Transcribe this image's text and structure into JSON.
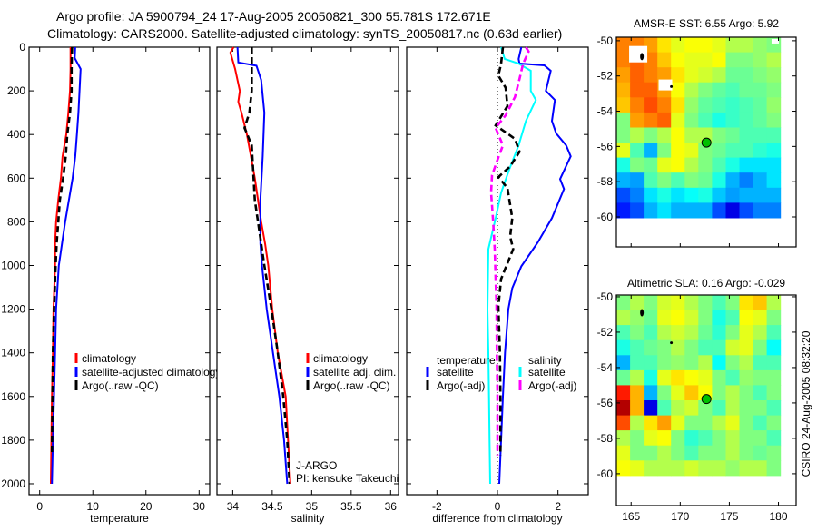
{
  "title_line1": "Argo profile: JA 5900794_24 17-Aug-2005 20050821_300 55.781S 172.671E",
  "title_line2": "Climatology: CARS2000. Satellite-adjusted climatology: synTS_20050817.nc (0.63d earlier)",
  "credit": "CSIRO 24-Aug-2005 08:32:20",
  "program": "J-ARGO",
  "pi": "PI: kensuke Takeuchi",
  "colors": {
    "red": "#ff0000",
    "blue": "#0000ff",
    "black": "#000000",
    "cyan": "#00ffff",
    "magenta": "#ff00ff",
    "marker": "#00c000"
  },
  "chart_data": [
    {
      "type": "line",
      "xlabel": "temperature",
      "ylabel": "",
      "xlim": [
        -2,
        32
      ],
      "ylim": [
        0,
        2050
      ],
      "y_reversed": true,
      "xticks": [
        0,
        10,
        20,
        30
      ],
      "yticks": [
        0,
        200,
        400,
        600,
        800,
        1000,
        1200,
        1400,
        1600,
        1800,
        2000
      ],
      "legend": [
        "climatology",
        "satellite-adjusted climatology",
        "Argo(..raw -QC)"
      ],
      "legend_placement": "lower-center",
      "series": [
        {
          "name": "climatology",
          "color": "red",
          "style": "solid",
          "depth": [
            0,
            100,
            200,
            300,
            400,
            500,
            600,
            700,
            800,
            900,
            1000,
            1200,
            1400,
            1600,
            1800,
            2000
          ],
          "values": [
            5.8,
            5.8,
            5.7,
            5.4,
            5.0,
            4.3,
            4.0,
            3.5,
            3.1,
            2.9,
            2.9,
            2.6,
            2.5,
            2.3,
            2.2,
            2.1
          ]
        },
        {
          "name": "satellite-adjusted climatology",
          "color": "blue",
          "style": "solid",
          "depth": [
            0,
            50,
            100,
            200,
            300,
            400,
            500,
            600,
            700,
            800,
            900,
            1000,
            1200,
            1400,
            1600,
            1800,
            2000
          ],
          "values": [
            6.7,
            6.6,
            7.7,
            7.5,
            7.3,
            7.0,
            6.7,
            6.2,
            5.5,
            4.8,
            4.2,
            3.6,
            3.1,
            2.9,
            2.7,
            2.5,
            2.3
          ]
        },
        {
          "name": "Argo(..raw -QC)",
          "color": "black",
          "style": "dashed",
          "depth": [
            0,
            100,
            200,
            300,
            400,
            500,
            600,
            700,
            800,
            900,
            1000,
            1200,
            1400,
            1600,
            1870
          ],
          "values": [
            6.1,
            6.0,
            6.0,
            5.7,
            5.2,
            4.9,
            4.4,
            3.8,
            3.5,
            3.2,
            3.0,
            2.7,
            2.5,
            2.4,
            2.3
          ]
        }
      ]
    },
    {
      "type": "line",
      "xlabel": "salinity",
      "xlim": [
        33.8,
        36.1
      ],
      "ylim": [
        0,
        2050
      ],
      "y_reversed": true,
      "xticks": [
        34,
        34.5,
        35,
        35.5,
        36
      ],
      "legend": [
        "climatology",
        "satellite adj. clim.",
        "Argo(..raw -QC)"
      ],
      "legend_placement": "lower-center",
      "series": [
        {
          "name": "climatology",
          "color": "red",
          "style": "solid",
          "depth": [
            0,
            25,
            100,
            200,
            250,
            300,
            400,
            500,
            600,
            700,
            800,
            900,
            1000,
            1200,
            1400,
            1600,
            1800,
            2000
          ],
          "values": [
            34.01,
            33.97,
            34.03,
            34.09,
            34.07,
            34.11,
            34.18,
            34.23,
            34.28,
            34.32,
            34.36,
            34.41,
            34.45,
            34.5,
            34.57,
            34.67,
            34.7,
            34.73
          ]
        },
        {
          "name": "satellite adj. clim.",
          "color": "blue",
          "style": "solid",
          "depth": [
            0,
            70,
            85,
            150,
            300,
            500,
            700,
            900,
            1000,
            1200,
            1400,
            1600,
            1800,
            2000
          ],
          "values": [
            34.06,
            34.07,
            34.3,
            34.36,
            34.4,
            34.38,
            34.35,
            34.35,
            34.37,
            34.43,
            34.51,
            34.59,
            34.65,
            34.69
          ]
        },
        {
          "name": "Argo(..raw -QC)",
          "color": "black",
          "style": "dashed",
          "depth": [
            0,
            200,
            300,
            370,
            450,
            700,
            800,
            1000,
            1200,
            1400,
            1600,
            1800,
            2000
          ],
          "values": [
            34.24,
            34.24,
            34.21,
            34.15,
            34.24,
            34.28,
            34.32,
            34.4,
            34.49,
            34.57,
            34.64,
            34.69,
            34.72
          ]
        }
      ]
    },
    {
      "type": "line",
      "xlabel": "difference from climatology",
      "xlim": [
        -3,
        3
      ],
      "ylim": [
        0,
        2050
      ],
      "y_reversed": true,
      "xticks": [
        -2,
        0,
        2
      ],
      "zero_line": "dotted",
      "legend_headers": [
        "temperature",
        "salinity"
      ],
      "legend": [
        "satellite",
        "Argo(-adj)",
        "satellite",
        "Argo(-adj)"
      ],
      "legend_placement": "lower-center",
      "series": [
        {
          "name": "temperature satellite",
          "color": "blue",
          "style": "solid",
          "depth": [
            0,
            54,
            75,
            83,
            108,
            200,
            242,
            338,
            395,
            450,
            500,
            604,
            650,
            783,
            895,
            1004,
            1104,
            1200,
            1400,
            1600,
            1800,
            2000
          ],
          "values": [
            0.79,
            0.7,
            0.73,
            1.55,
            1.76,
            1.6,
            1.9,
            1.8,
            1.94,
            2.27,
            2.42,
            2.07,
            2.2,
            1.8,
            1.33,
            0.79,
            0.49,
            0.36,
            0.25,
            0.18,
            0.12,
            0.06
          ]
        },
        {
          "name": "salinity satellite",
          "color": "cyan",
          "style": "solid",
          "depth": [
            0,
            54,
            75,
            108,
            200,
            242,
            338,
            450,
            560,
            667,
            783,
            925,
            1200,
            1400,
            1600,
            1800,
            2000
          ],
          "values": [
            0.12,
            0.24,
            0.7,
            1.1,
            1.1,
            1.27,
            0.94,
            0.7,
            0.39,
            0.12,
            -0.06,
            -0.3,
            -0.33,
            -0.3,
            -0.28,
            -0.26,
            -0.24
          ]
        },
        {
          "name": "temperature Argo(-adj)",
          "color": "black",
          "style": "dashed",
          "depth": [
            0,
            75,
            130,
            186,
            270,
            358,
            420,
            479,
            546,
            595,
            645,
            783,
            867,
            925,
            1062,
            1187,
            1400,
            1600,
            1870
          ],
          "values": [
            0.18,
            0.12,
            0.03,
            0.27,
            0.33,
            -0.06,
            0.58,
            0.73,
            0.42,
            0.03,
            0.33,
            0.49,
            0.42,
            0.52,
            0.12,
            0.03,
            0.08,
            0.1,
            0.1
          ]
        },
        {
          "name": "salinity Argo(-adj)",
          "color": "magenta",
          "style": "dashed",
          "depth": [
            0,
            20,
            75,
            145,
            228,
            312,
            370,
            450,
            505,
            587,
            667,
            783,
            925,
            1062,
            1187,
            1400,
            1600,
            1870
          ],
          "values": [
            0.94,
            1.03,
            0.85,
            0.73,
            0.58,
            0.27,
            -0.06,
            0.18,
            0.03,
            -0.18,
            -0.21,
            -0.15,
            -0.09,
            -0.06,
            -0.03,
            -0.02,
            0.0,
            0.0
          ]
        }
      ]
    },
    {
      "type": "heatmap",
      "title": "AMSR-E SST: 6.55 Argo: 5.92",
      "xticks": [
        165,
        170,
        175,
        180
      ],
      "yticks": [
        -50,
        -52,
        -54,
        -56,
        -58,
        -60
      ],
      "lon_range": [
        163.5,
        180.2
      ],
      "lat_range": [
        -49.8,
        -60.05
      ],
      "xlim": [
        163.5,
        181.8
      ],
      "ylim": [
        -61.7,
        -49.8
      ],
      "colormap": "jet",
      "values_normalized": [
        [
          0.75,
          0.75,
          0.72,
          0.65,
          0.6,
          0.62,
          0.62,
          0.6,
          0.55,
          0.55,
          0.52,
          0.5
        ],
        [
          0.75,
          0.78,
          0.75,
          0.68,
          0.62,
          0.6,
          0.6,
          0.62,
          0.5,
          0.5,
          0.52,
          0.55
        ],
        [
          0.72,
          0.78,
          0.75,
          0.72,
          0.65,
          0.6,
          0.58,
          0.55,
          0.48,
          0.48,
          0.5,
          0.52
        ],
        [
          0.7,
          0.78,
          0.78,
          0.72,
          0.62,
          0.55,
          0.5,
          0.47,
          0.45,
          0.48,
          0.48,
          0.5
        ],
        [
          0.68,
          0.75,
          0.8,
          0.75,
          0.65,
          0.52,
          0.47,
          0.45,
          0.43,
          0.45,
          0.47,
          0.52
        ],
        [
          0.5,
          0.72,
          0.75,
          0.78,
          0.6,
          0.5,
          0.45,
          0.4,
          0.43,
          0.45,
          0.47,
          0.5
        ],
        [
          0.5,
          0.55,
          0.5,
          0.55,
          0.62,
          0.55,
          0.55,
          0.5,
          0.48,
          0.45,
          0.45,
          0.45
        ],
        [
          0.6,
          0.45,
          0.3,
          0.5,
          0.62,
          0.6,
          0.5,
          0.48,
          0.45,
          0.45,
          0.42,
          0.4
        ],
        [
          0.4,
          0.5,
          0.48,
          0.6,
          0.62,
          0.55,
          0.5,
          0.45,
          0.4,
          0.35,
          0.35,
          0.35
        ],
        [
          0.3,
          0.28,
          0.45,
          0.5,
          0.45,
          0.5,
          0.48,
          0.4,
          0.3,
          0.25,
          0.3,
          0.35
        ],
        [
          0.2,
          0.25,
          0.35,
          0.4,
          0.35,
          0.38,
          0.4,
          0.32,
          0.28,
          0.3,
          0.3,
          0.3
        ],
        [
          0.15,
          0.2,
          0.3,
          0.35,
          0.3,
          0.3,
          0.3,
          0.2,
          0.1,
          0.2,
          0.25,
          0.25
        ]
      ],
      "argo_position": {
        "lon": 172.671,
        "lat": -55.781
      }
    },
    {
      "type": "heatmap",
      "title": "Altimetric SLA: 0.16 Argo: -0.029",
      "xticks": [
        165,
        170,
        175,
        180
      ],
      "yticks": [
        -50,
        -52,
        -54,
        -56,
        -58,
        -60
      ],
      "lon_range": [
        163.5,
        180.2
      ],
      "lat_range": [
        -49.9,
        -60.1
      ],
      "xlim": [
        163.5,
        181.8
      ],
      "ylim": [
        -61.8,
        -49.9
      ],
      "colormap": "jet",
      "values_normalized": [
        [
          0.5,
          0.55,
          0.5,
          0.58,
          0.6,
          0.55,
          0.5,
          0.45,
          0.5,
          0.65,
          0.68,
          0.55
        ],
        [
          0.55,
          0.52,
          0.48,
          0.6,
          0.62,
          0.58,
          0.5,
          0.4,
          0.45,
          0.62,
          0.6,
          0.5
        ],
        [
          0.45,
          0.5,
          0.45,
          0.55,
          0.58,
          0.55,
          0.48,
          0.42,
          0.5,
          0.6,
          0.55,
          0.45
        ],
        [
          0.4,
          0.45,
          0.48,
          0.5,
          0.55,
          0.5,
          0.45,
          0.45,
          0.58,
          0.6,
          0.5,
          0.38
        ],
        [
          0.3,
          0.45,
          0.45,
          0.5,
          0.52,
          0.5,
          0.55,
          0.38,
          0.5,
          0.55,
          0.45,
          0.45
        ],
        [
          0.48,
          0.55,
          0.4,
          0.6,
          0.65,
          0.62,
          0.6,
          0.5,
          0.45,
          0.52,
          0.5,
          0.5
        ],
        [
          0.85,
          0.7,
          0.3,
          0.5,
          0.6,
          0.68,
          0.62,
          0.5,
          0.55,
          0.5,
          0.45,
          0.5
        ],
        [
          0.95,
          0.7,
          0.1,
          0.45,
          0.55,
          0.58,
          0.5,
          0.45,
          0.55,
          0.5,
          0.5,
          0.45
        ],
        [
          0.8,
          0.55,
          0.65,
          0.72,
          0.6,
          0.5,
          0.5,
          0.55,
          0.6,
          0.5,
          0.45,
          0.5
        ],
        [
          0.55,
          0.5,
          0.6,
          0.62,
          0.5,
          0.42,
          0.45,
          0.5,
          0.55,
          0.5,
          0.5,
          0.45
        ],
        [
          0.6,
          0.5,
          0.5,
          0.55,
          0.5,
          0.45,
          0.5,
          0.5,
          0.55,
          0.5,
          0.48,
          0.5
        ],
        [
          0.62,
          0.6,
          0.55,
          0.55,
          0.55,
          0.58,
          0.55,
          0.55,
          0.52,
          0.55,
          0.55,
          0.5
        ]
      ],
      "argo_position": {
        "lon": 172.671,
        "lat": -55.781
      }
    }
  ]
}
